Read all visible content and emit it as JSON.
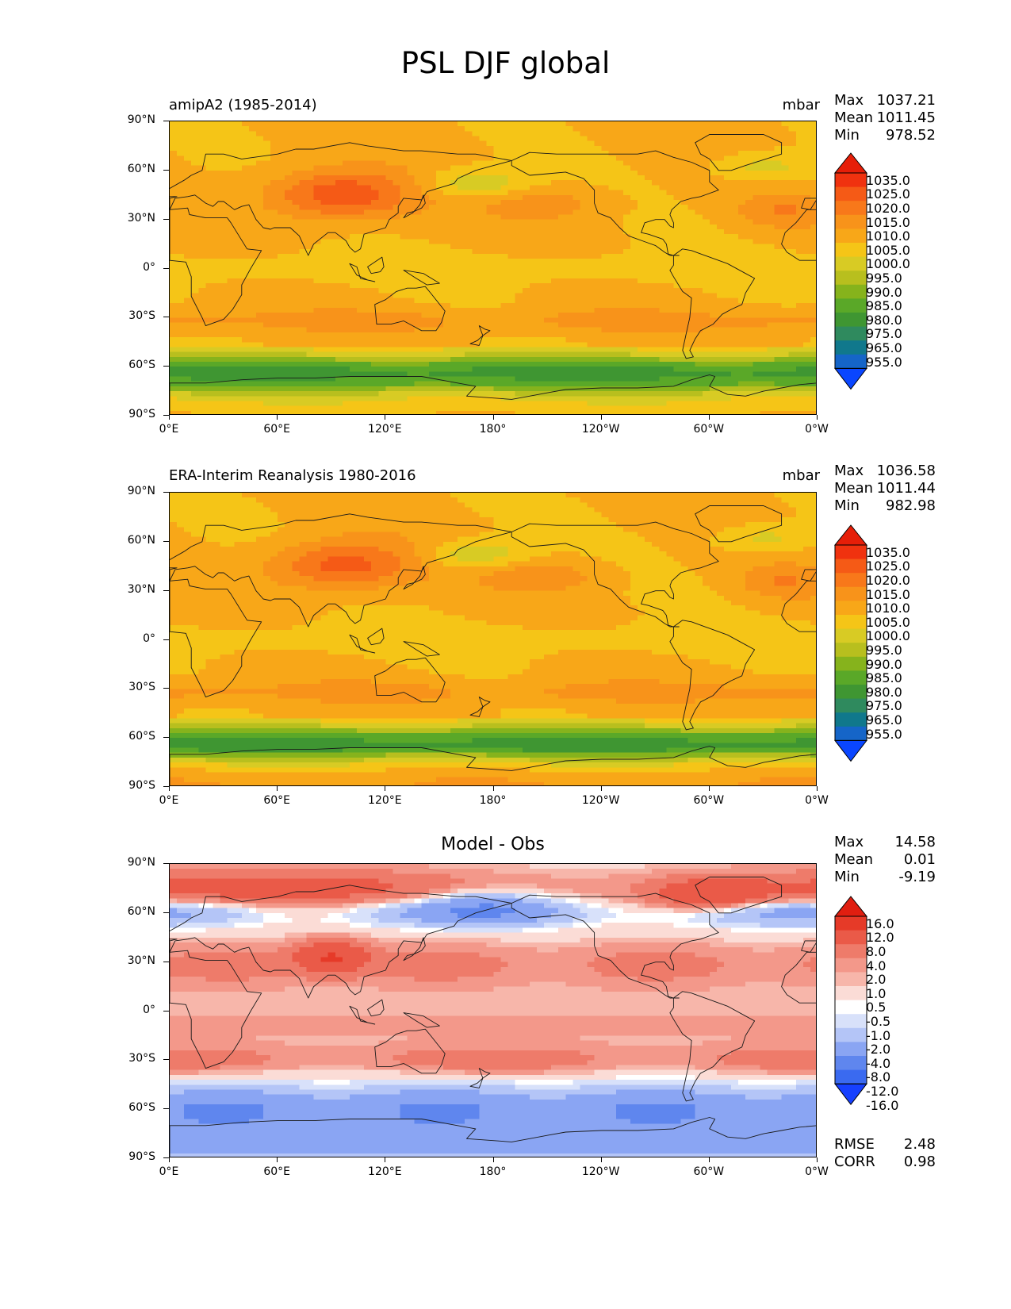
{
  "page_title": "PSL DJF global",
  "colors": {
    "abs_levels": [
      "#0a46ff",
      "#1565c8",
      "#10788c",
      "#2f8a5e",
      "#3f9632",
      "#5aa828",
      "#86b31c",
      "#b8bf1e",
      "#d8cb24",
      "#f5c517",
      "#f8a718",
      "#f8931a",
      "#f8781a",
      "#f55a16",
      "#f0320f",
      "#e61e08"
    ],
    "diff_levels": [
      "#1640ff",
      "#3a6af0",
      "#5f86ee",
      "#8aa5f3",
      "#b4c5f7",
      "#d8e1fa",
      "#ffffff",
      "#fbdcd6",
      "#f7b6aa",
      "#f3988a",
      "#ee7b6a",
      "#ea5a48",
      "#e63a28",
      "#e01e10"
    ],
    "land_outline": "#1a1a1a"
  },
  "chart_data": [
    {
      "type": "heatmap",
      "panel": "test",
      "left_label": "amipA2 (1985-2014)",
      "units": "mbar",
      "stats": {
        "max_label": "Max",
        "max": "1037.21",
        "mean_label": "Mean",
        "mean": "1011.45",
        "min_label": "Min",
        "min": "978.52"
      },
      "xticks": [
        "0°E",
        "60°E",
        "120°E",
        "180°",
        "120°W",
        "60°W",
        "0°W"
      ],
      "yticks": [
        "90°N",
        "60°N",
        "30°N",
        "0°",
        "30°S",
        "60°S",
        "90°S"
      ],
      "colorbar_levels": [
        "1035.0",
        "1025.0",
        "1020.0",
        "1015.0",
        "1010.0",
        "1005.0",
        "1000.0",
        "995.0",
        "990.0",
        "985.0",
        "980.0",
        "975.0",
        "965.0",
        "955.0"
      ],
      "xlim": [
        0,
        360
      ],
      "ylim": [
        -90,
        90
      ]
    },
    {
      "type": "heatmap",
      "panel": "reference",
      "left_label": "ERA-Interim Reanalysis 1980-2016",
      "units": "mbar",
      "stats": {
        "max_label": "Max",
        "max": "1036.58",
        "mean_label": "Mean",
        "mean": "1011.44",
        "min_label": "Min",
        "min": "982.98"
      },
      "xticks": [
        "0°E",
        "60°E",
        "120°E",
        "180°",
        "120°W",
        "60°W",
        "0°W"
      ],
      "yticks": [
        "90°N",
        "60°N",
        "30°N",
        "0°",
        "30°S",
        "60°S",
        "90°S"
      ],
      "colorbar_levels": [
        "1035.0",
        "1025.0",
        "1020.0",
        "1015.0",
        "1010.0",
        "1005.0",
        "1000.0",
        "995.0",
        "990.0",
        "985.0",
        "980.0",
        "975.0",
        "965.0",
        "955.0"
      ],
      "xlim": [
        0,
        360
      ],
      "ylim": [
        -90,
        90
      ]
    },
    {
      "type": "heatmap",
      "panel": "difference",
      "title": "Model - Obs",
      "stats": {
        "max_label": "Max",
        "max": "14.58",
        "mean_label": "Mean",
        "mean": "0.01",
        "min_label": "Min",
        "min": "-9.19"
      },
      "xticks": [
        "0°E",
        "60°E",
        "120°E",
        "180°",
        "120°W",
        "60°W",
        "0°W"
      ],
      "yticks": [
        "90°N",
        "60°N",
        "30°N",
        "0°",
        "30°S",
        "60°S",
        "90°S"
      ],
      "colorbar_levels": [
        "16.0",
        "12.0",
        "8.0",
        "4.0",
        "2.0",
        "1.0",
        "0.5",
        "-0.5",
        "-1.0",
        "-2.0",
        "-4.0",
        "-8.0",
        "-12.0",
        "-16.0"
      ],
      "xlim": [
        0,
        360
      ],
      "ylim": [
        -90,
        90
      ],
      "metrics": {
        "rmse_label": "RMSE",
        "rmse": "2.48",
        "corr_label": "CORR",
        "corr": "0.98"
      }
    }
  ]
}
